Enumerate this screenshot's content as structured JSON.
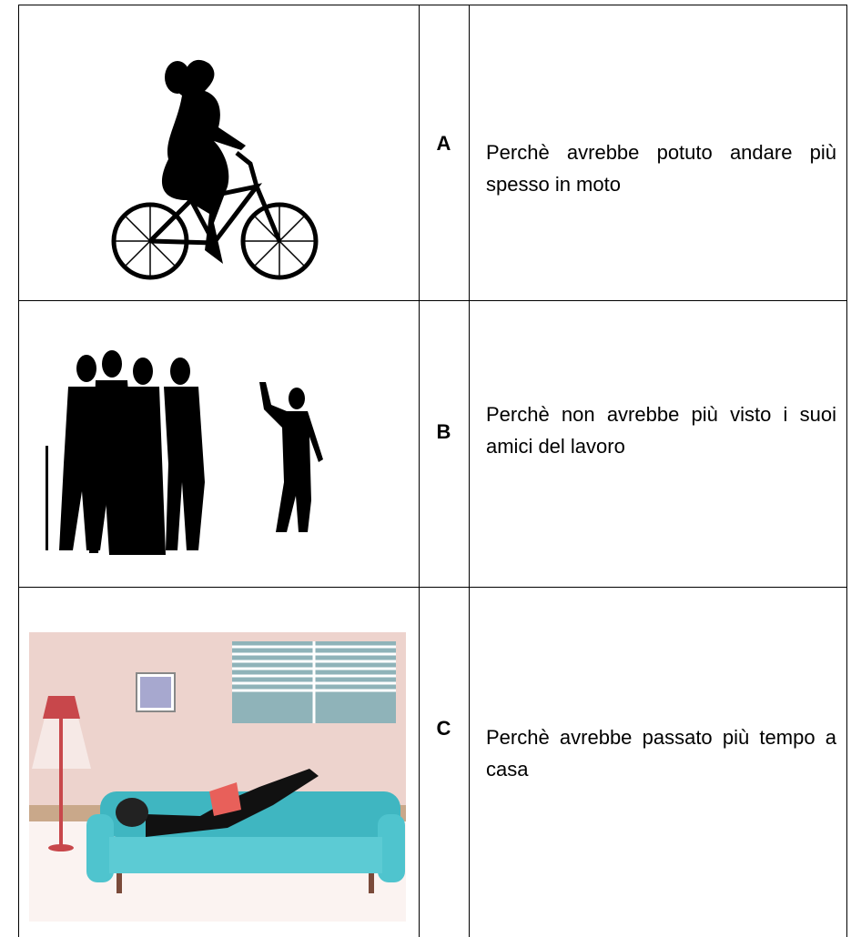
{
  "table": {
    "rows": [
      {
        "label": "A",
        "text": "Perchè avrebbe potuto andare più spesso in moto"
      },
      {
        "label": "B",
        "text": "Perchè non avrebbe più visto i suoi amici del lavoro"
      },
      {
        "label": "C",
        "text": "Perchè avrebbe passato più tempo a casa"
      }
    ]
  }
}
